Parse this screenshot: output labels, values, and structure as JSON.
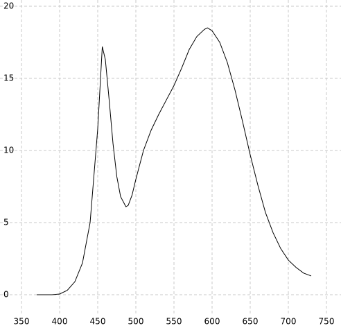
{
  "chart_data": {
    "type": "line",
    "x": [
      370,
      380,
      390,
      400,
      410,
      420,
      430,
      440,
      450,
      456,
      460,
      465,
      470,
      475,
      480,
      487,
      490,
      495,
      500,
      510,
      520,
      530,
      540,
      550,
      560,
      570,
      580,
      590,
      594,
      600,
      610,
      620,
      630,
      640,
      650,
      660,
      670,
      680,
      690,
      700,
      710,
      720,
      730
    ],
    "series": [
      {
        "color": "#000000",
        "values": [
          0,
          0,
          0,
          0.05,
          0.3,
          0.9,
          2.2,
          5,
          11.5,
          17.2,
          16.3,
          13.5,
          10.5,
          8.2,
          6.8,
          6.1,
          6.2,
          6.9,
          8.0,
          10.0,
          11.4,
          12.5,
          13.5,
          14.5,
          15.7,
          17.0,
          17.9,
          18.4,
          18.5,
          18.3,
          17.5,
          16.1,
          14.2,
          12.0,
          9.7,
          7.6,
          5.7,
          4.3,
          3.2,
          2.4,
          1.9,
          1.5,
          1.3
        ]
      }
    ],
    "xlim": [
      350,
      750
    ],
    "xticks": [
      350,
      400,
      450,
      500,
      550,
      600,
      650,
      700,
      750
    ],
    "ylim": [
      0,
      20
    ],
    "yticks": [
      0,
      5,
      10,
      15,
      20
    ],
    "grid": true
  }
}
